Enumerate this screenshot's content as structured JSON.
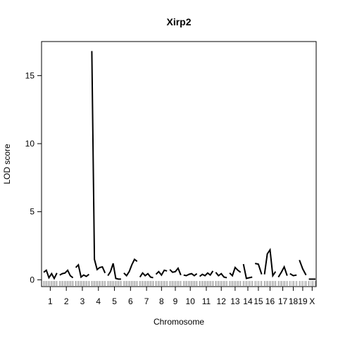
{
  "chart_data": {
    "type": "line",
    "title": "Xirp2",
    "xlabel": "Chromosome",
    "ylabel": "LOD score",
    "ylim": [
      -0.5,
      17.5
    ],
    "yticks": [
      0,
      5,
      10,
      15
    ],
    "grid": false,
    "line_color": "#000000",
    "chromosomes": [
      {
        "label": "1",
        "lod": [
          0.55,
          0.7,
          0.15,
          0.45,
          0.1,
          0.5
        ]
      },
      {
        "label": "2",
        "lod": [
          0.35,
          0.45,
          0.5,
          0.7,
          0.3,
          0.15
        ]
      },
      {
        "label": "3",
        "lod": [
          0.9,
          1.1,
          0.2,
          0.35,
          0.25,
          0.4
        ]
      },
      {
        "label": "4",
        "lod": [
          16.8,
          1.5,
          0.75,
          0.9,
          0.95,
          0.5
        ]
      },
      {
        "label": "5",
        "lod": [
          0.3,
          0.6,
          1.2,
          0.1,
          0.05,
          0.05
        ]
      },
      {
        "label": "6",
        "lod": [
          0.5,
          0.3,
          0.6,
          1.1,
          1.5,
          1.35
        ]
      },
      {
        "label": "7",
        "lod": [
          0.2,
          0.5,
          0.3,
          0.45,
          0.2,
          0.15
        ]
      },
      {
        "label": "8",
        "lod": [
          0.4,
          0.6,
          0.35,
          0.7,
          0.65
        ]
      },
      {
        "label": "9",
        "lod": [
          0.75,
          0.55,
          0.6,
          0.85,
          0.35
        ]
      },
      {
        "label": "10",
        "lod": [
          0.35,
          0.3,
          0.4,
          0.45,
          0.3,
          0.45
        ]
      },
      {
        "label": "11",
        "lod": [
          0.25,
          0.4,
          0.3,
          0.5,
          0.35,
          0.65
        ]
      },
      {
        "label": "12",
        "lod": [
          0.55,
          0.3,
          0.45,
          0.2,
          0.15
        ]
      },
      {
        "label": "13",
        "lod": [
          0.5,
          0.3,
          0.9,
          0.7,
          0.55
        ]
      },
      {
        "label": "14",
        "lod": [
          1.15,
          0.1,
          0.15,
          0.2
        ]
      },
      {
        "label": "15",
        "lod": [
          1.2,
          1.15,
          0.4
        ]
      },
      {
        "label": "16",
        "lod": [
          0.4,
          1.9,
          2.2,
          0.3,
          0.6
        ]
      },
      {
        "label": "17",
        "lod": [
          0.2,
          0.55,
          0.95,
          0.3
        ]
      },
      {
        "label": "18",
        "lod": [
          0.45,
          0.3,
          0.35
        ]
      },
      {
        "label": "19",
        "lod": [
          1.45,
          0.8,
          0.35
        ]
      },
      {
        "label": "X",
        "lod": [
          0.05,
          0.05,
          0.05
        ]
      }
    ]
  }
}
